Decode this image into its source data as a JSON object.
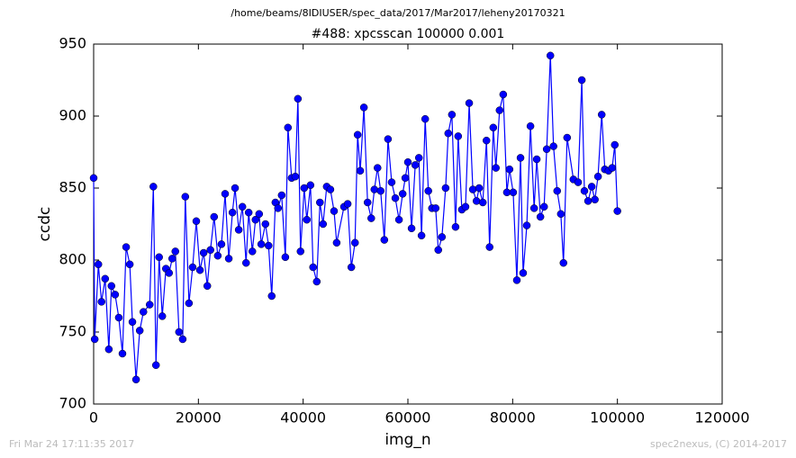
{
  "chart_data": {
    "type": "line",
    "path": "/home/beams/8IDIUSER/spec_data/2017/Mar2017/leheny20170321",
    "title": "#488: xpcsscan 100000 0.001",
    "x_label": "img_n",
    "y_label": "ccdc",
    "footer_left": "Fri Mar 24 17:11:35 2017",
    "footer_right": "spec2nexus, (C) 2014-2017",
    "color": "#0000ff",
    "xlim": [
      0,
      120000
    ],
    "xticks": [
      0,
      20000,
      40000,
      60000,
      80000,
      100000,
      120000
    ],
    "ylim": [
      700,
      950
    ],
    "yticks": [
      700,
      750,
      800,
      850,
      900,
      950
    ],
    "x": [
      0,
      200,
      900,
      1500,
      2200,
      2900,
      3400,
      4100,
      4800,
      5500,
      6200,
      6900,
      7400,
      8100,
      8800,
      9500,
      10700,
      11400,
      11900,
      12500,
      13100,
      13800,
      14400,
      15000,
      15600,
      16300,
      17000,
      17500,
      18200,
      18900,
      19600,
      20300,
      21000,
      21700,
      22300,
      23000,
      23700,
      24400,
      25100,
      25800,
      26500,
      27000,
      27700,
      28400,
      29100,
      29600,
      30300,
      30900,
      31600,
      32000,
      32800,
      33400,
      34000,
      34700,
      35200,
      35900,
      36600,
      37100,
      37800,
      38500,
      39000,
      39500,
      40200,
      40700,
      41400,
      41900,
      42600,
      43200,
      43800,
      44500,
      45200,
      45900,
      46400,
      47800,
      48500,
      49200,
      49900,
      50400,
      50900,
      51600,
      52300,
      53000,
      53600,
      54200,
      54800,
      55500,
      56200,
      56900,
      57600,
      58300,
      59000,
      59500,
      60000,
      60700,
      61400,
      62100,
      62600,
      63300,
      63900,
      64600,
      65300,
      65800,
      66500,
      67200,
      67700,
      68400,
      69100,
      69600,
      70300,
      71000,
      71700,
      72400,
      73100,
      73600,
      74300,
      75000,
      75600,
      76300,
      76800,
      77500,
      78200,
      78900,
      79400,
      80100,
      80800,
      81500,
      82000,
      82700,
      83400,
      84100,
      84600,
      85300,
      86000,
      86500,
      87200,
      87800,
      88500,
      89200,
      89700,
      90400,
      91600,
      92500,
      93200,
      93700,
      94400,
      95100,
      95700,
      96300,
      97000,
      97600,
      98300,
      99000,
      99500,
      100000
    ],
    "values": [
      857,
      745,
      797,
      771,
      787,
      738,
      782,
      776,
      760,
      735,
      809,
      797,
      757,
      717,
      751,
      764,
      769,
      851,
      727,
      802,
      761,
      794,
      791,
      801,
      806,
      750,
      745,
      844,
      770,
      795,
      827,
      793,
      805,
      782,
      807,
      830,
      803,
      811,
      846,
      801,
      833,
      850,
      821,
      837,
      798,
      833,
      806,
      828,
      832,
      811,
      825,
      810,
      775,
      840,
      836,
      845,
      802,
      892,
      857,
      858,
      912,
      806,
      850,
      828,
      852,
      795,
      785,
      840,
      825,
      851,
      849,
      834,
      812,
      837,
      839,
      795,
      812,
      887,
      862,
      906,
      840,
      829,
      849,
      864,
      848,
      814,
      884,
      854,
      843,
      828,
      846,
      857,
      868,
      822,
      866,
      871,
      817,
      898,
      848,
      836,
      836,
      807,
      816,
      850,
      888,
      901,
      823,
      886,
      835,
      837,
      909,
      849,
      841,
      850,
      840,
      883,
      809,
      892,
      864,
      904,
      915,
      847,
      863,
      847,
      786,
      871,
      791,
      824,
      893,
      836,
      870,
      830,
      837,
      877,
      942,
      879,
      848,
      832,
      798,
      885,
      856,
      854,
      925,
      848,
      841,
      851,
      842,
      858,
      901,
      863,
      862,
      864,
      880,
      834
    ]
  }
}
